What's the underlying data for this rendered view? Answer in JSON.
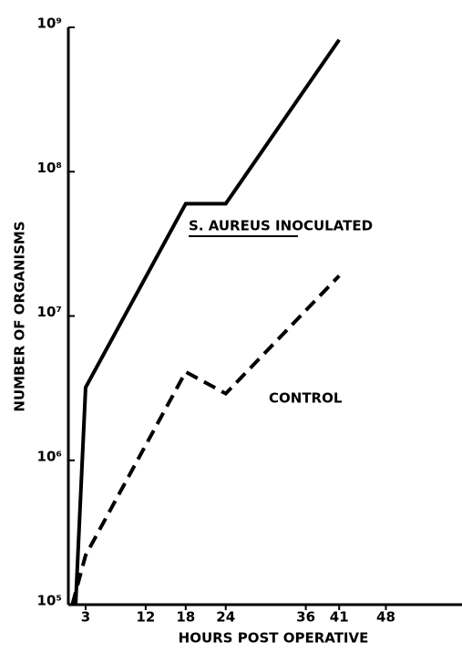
{
  "chart_data": {
    "type": "line",
    "x_label": "HOURS POST OPERATIVE",
    "y_label": "NUMBER OF ORGANISMS",
    "log_y": true,
    "xlim": [
      0,
      59
    ],
    "ylim": [
      100000,
      1000000000
    ],
    "xticks": [
      3,
      12,
      18,
      24,
      36,
      41,
      48
    ],
    "yticks": [
      {
        "value": 100000,
        "label": "10⁵"
      },
      {
        "value": 1000000,
        "label": "10⁶"
      },
      {
        "value": 10000000,
        "label": "10⁷"
      },
      {
        "value": 100000000,
        "label": "10⁸"
      },
      {
        "value": 1000000000,
        "label": "10⁹"
      }
    ],
    "series": [
      {
        "name": "S. AUREUS INOCULATED",
        "color": "#000000",
        "line_style": "solid",
        "x": [
          1.5,
          3,
          18,
          24,
          41
        ],
        "values": [
          100000,
          3200000,
          60000000,
          60000000,
          820000000
        ]
      },
      {
        "name": "CONTROL",
        "color": "#000000",
        "line_style": "dashed",
        "x": [
          1,
          3,
          18,
          24,
          41
        ],
        "values": [
          100000,
          220000,
          4100000,
          2900000,
          19000000
        ]
      }
    ]
  }
}
